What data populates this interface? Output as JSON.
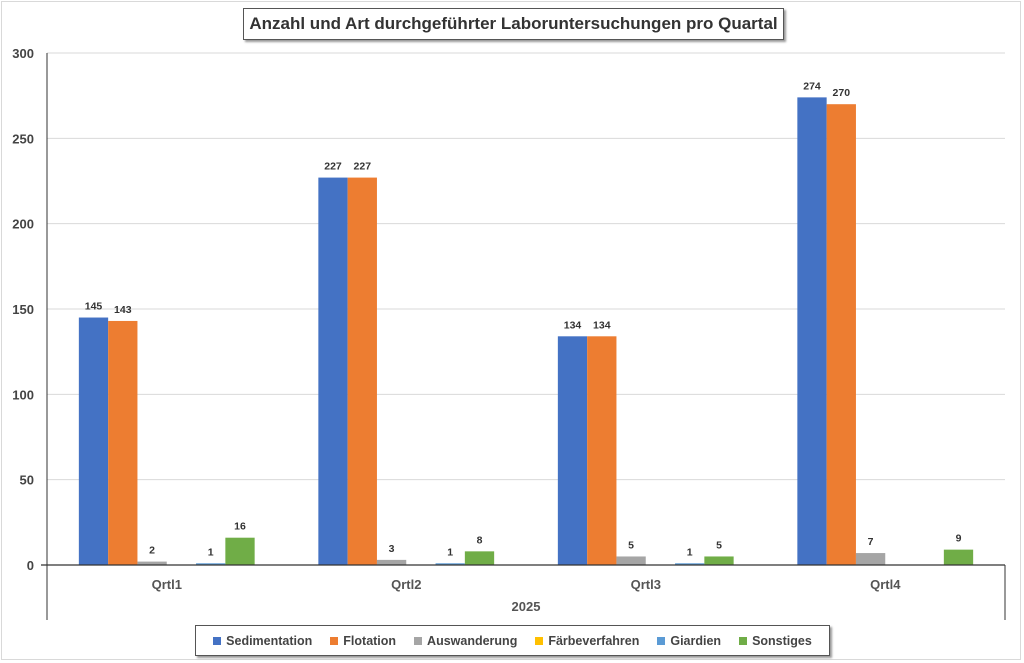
{
  "chart_data": {
    "type": "bar",
    "title": "Anzahl und Art durchgeführter Laboruntersuchungen pro Quartal",
    "categories": [
      "Qrtl1",
      "Qrtl2",
      "Qrtl3",
      "Qrtl4"
    ],
    "group_label": "2025",
    "xlabel": "",
    "ylabel": "",
    "ylim": [
      0,
      300
    ],
    "yticks": [
      0,
      50,
      100,
      150,
      200,
      250,
      300
    ],
    "grid": true,
    "legend_position": "bottom",
    "series": [
      {
        "name": "Sedimentation",
        "color": "#4472C4",
        "values": [
          145,
          227,
          134,
          274
        ]
      },
      {
        "name": "Flotation",
        "color": "#ED7D31",
        "values": [
          143,
          227,
          134,
          270
        ]
      },
      {
        "name": "Auswanderung",
        "color": "#A5A5A5",
        "values": [
          2,
          3,
          5,
          7
        ]
      },
      {
        "name": "Färbeverfahren",
        "color": "#FFC000",
        "values": [
          null,
          null,
          null,
          null
        ]
      },
      {
        "name": "Giardien",
        "color": "#5B9BD5",
        "values": [
          1,
          1,
          1,
          null
        ]
      },
      {
        "name": "Sonstiges",
        "color": "#70AD47",
        "values": [
          16,
          8,
          5,
          9
        ]
      }
    ]
  }
}
